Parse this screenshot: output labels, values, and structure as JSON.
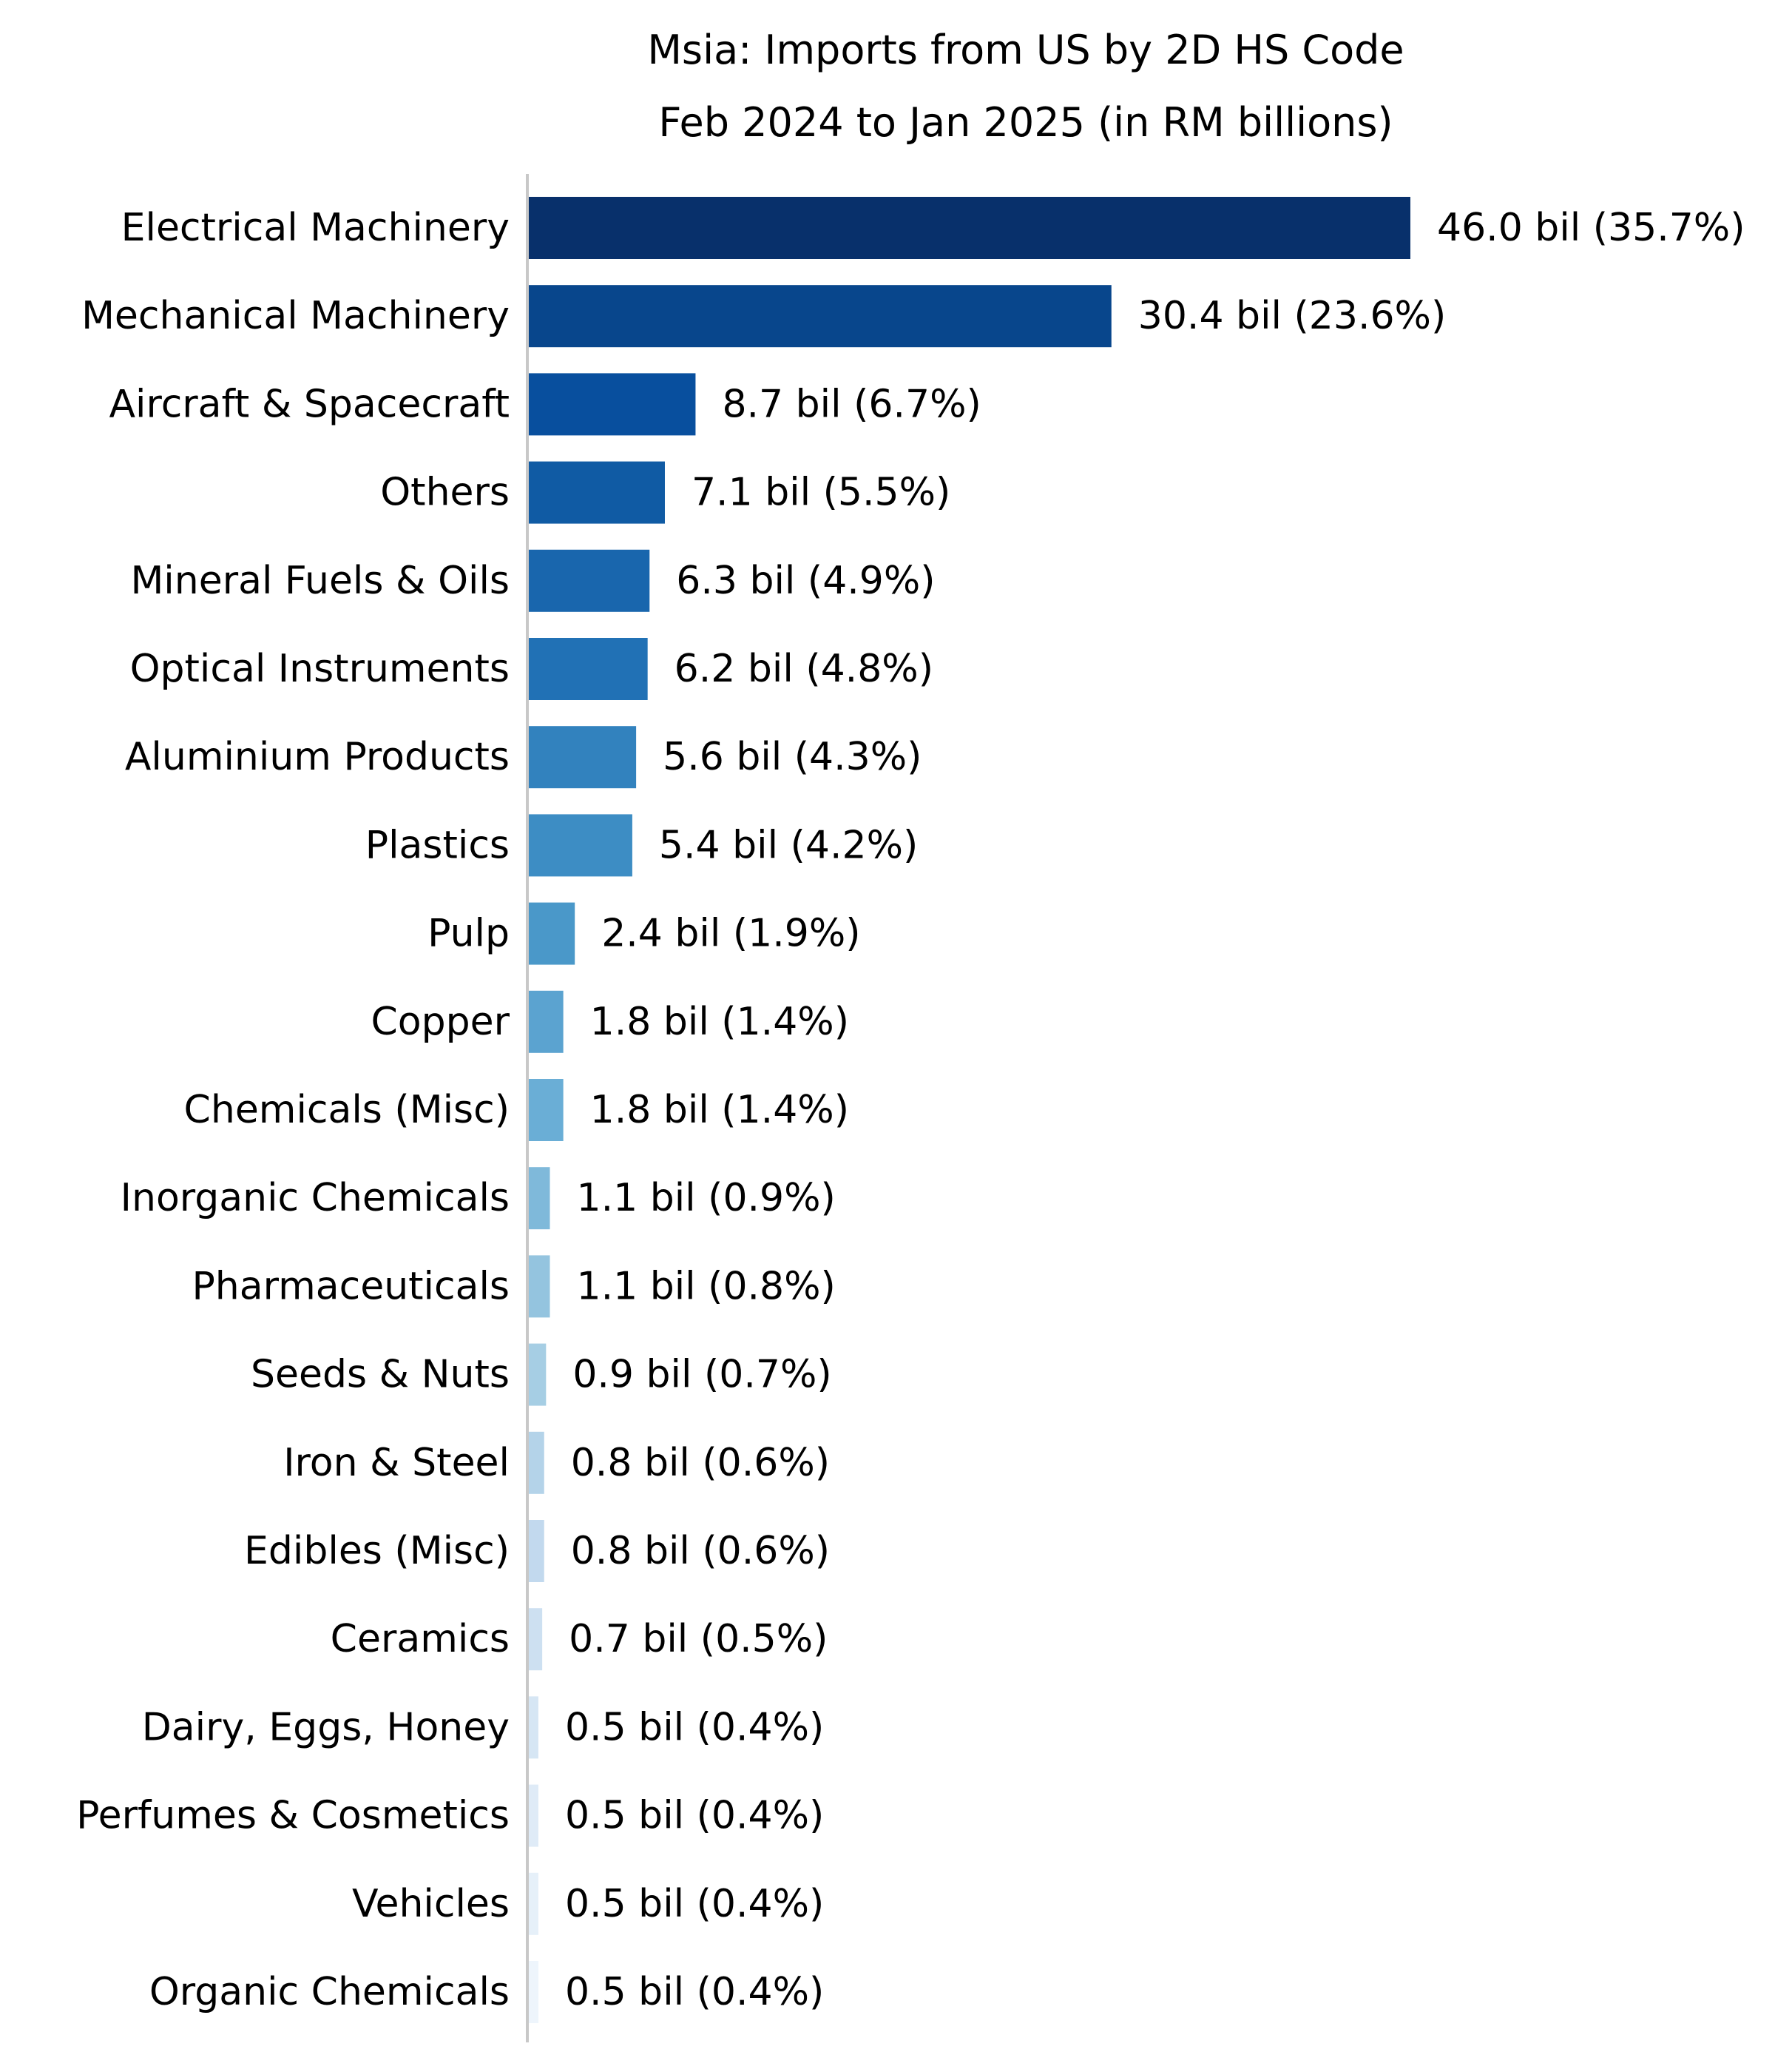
{
  "chart_data": {
    "type": "bar",
    "orientation": "horizontal",
    "title": "Msia: Imports from US by 2D HS Code",
    "subtitle": "Feb 2024 to Jan 2025 (in RM billions)",
    "xlabel": "",
    "ylabel": "",
    "grid": false,
    "legend": "none",
    "categories": [
      "Electrical Machinery",
      "Mechanical Machinery",
      "Aircraft & Spacecraft",
      "Others",
      "Mineral Fuels & Oils",
      "Optical Instruments",
      "Aluminium Products",
      "Plastics",
      "Pulp",
      "Copper",
      "Chemicals (Misc)",
      "Inorganic Chemicals",
      "Pharmaceuticals",
      "Seeds & Nuts",
      "Iron & Steel",
      "Edibles (Misc)",
      "Ceramics",
      "Dairy, Eggs, Honey",
      "Perfumes & Cosmetics",
      "Vehicles",
      "Organic Chemicals"
    ],
    "values": [
      46.0,
      30.4,
      8.7,
      7.1,
      6.3,
      6.2,
      5.6,
      5.4,
      2.4,
      1.8,
      1.8,
      1.1,
      1.1,
      0.9,
      0.8,
      0.8,
      0.7,
      0.5,
      0.5,
      0.5,
      0.5
    ],
    "value_labels": [
      "46.0 bil (35.7%)",
      "30.4 bil (23.6%)",
      "8.7 bil (6.7%)",
      "7.1 bil (5.5%)",
      "6.3 bil (4.9%)",
      "6.2 bil (4.8%)",
      "5.6 bil (4.3%)",
      "5.4 bil (4.2%)",
      "2.4 bil (1.9%)",
      "1.8 bil (1.4%)",
      "1.8 bil (1.4%)",
      "1.1 bil (0.9%)",
      "1.1 bil (0.8%)",
      "0.9 bil (0.7%)",
      "0.8 bil (0.6%)",
      "0.8 bil (0.6%)",
      "0.7 bil (0.5%)",
      "0.5 bil (0.4%)",
      "0.5 bil (0.4%)",
      "0.5 bil (0.4%)",
      "0.5 bil (0.4%)"
    ],
    "colors": [
      "#08306b",
      "#08468c",
      "#084f9e",
      "#105ba4",
      "#1966ad",
      "#2171b5",
      "#3282be",
      "#3d8dc4",
      "#4a98c9",
      "#5ba3d0",
      "#6aaed6",
      "#7fb9da",
      "#94c4df",
      "#a6cee4",
      "#b4d3e9",
      "#c2d9ee",
      "#cde0f1",
      "#d6e6f4",
      "#dfebf7",
      "#e6f0f9",
      "#eef5fc"
    ],
    "axis_color": "#c8c8c8",
    "xlim": [
      0,
      46.0
    ]
  }
}
